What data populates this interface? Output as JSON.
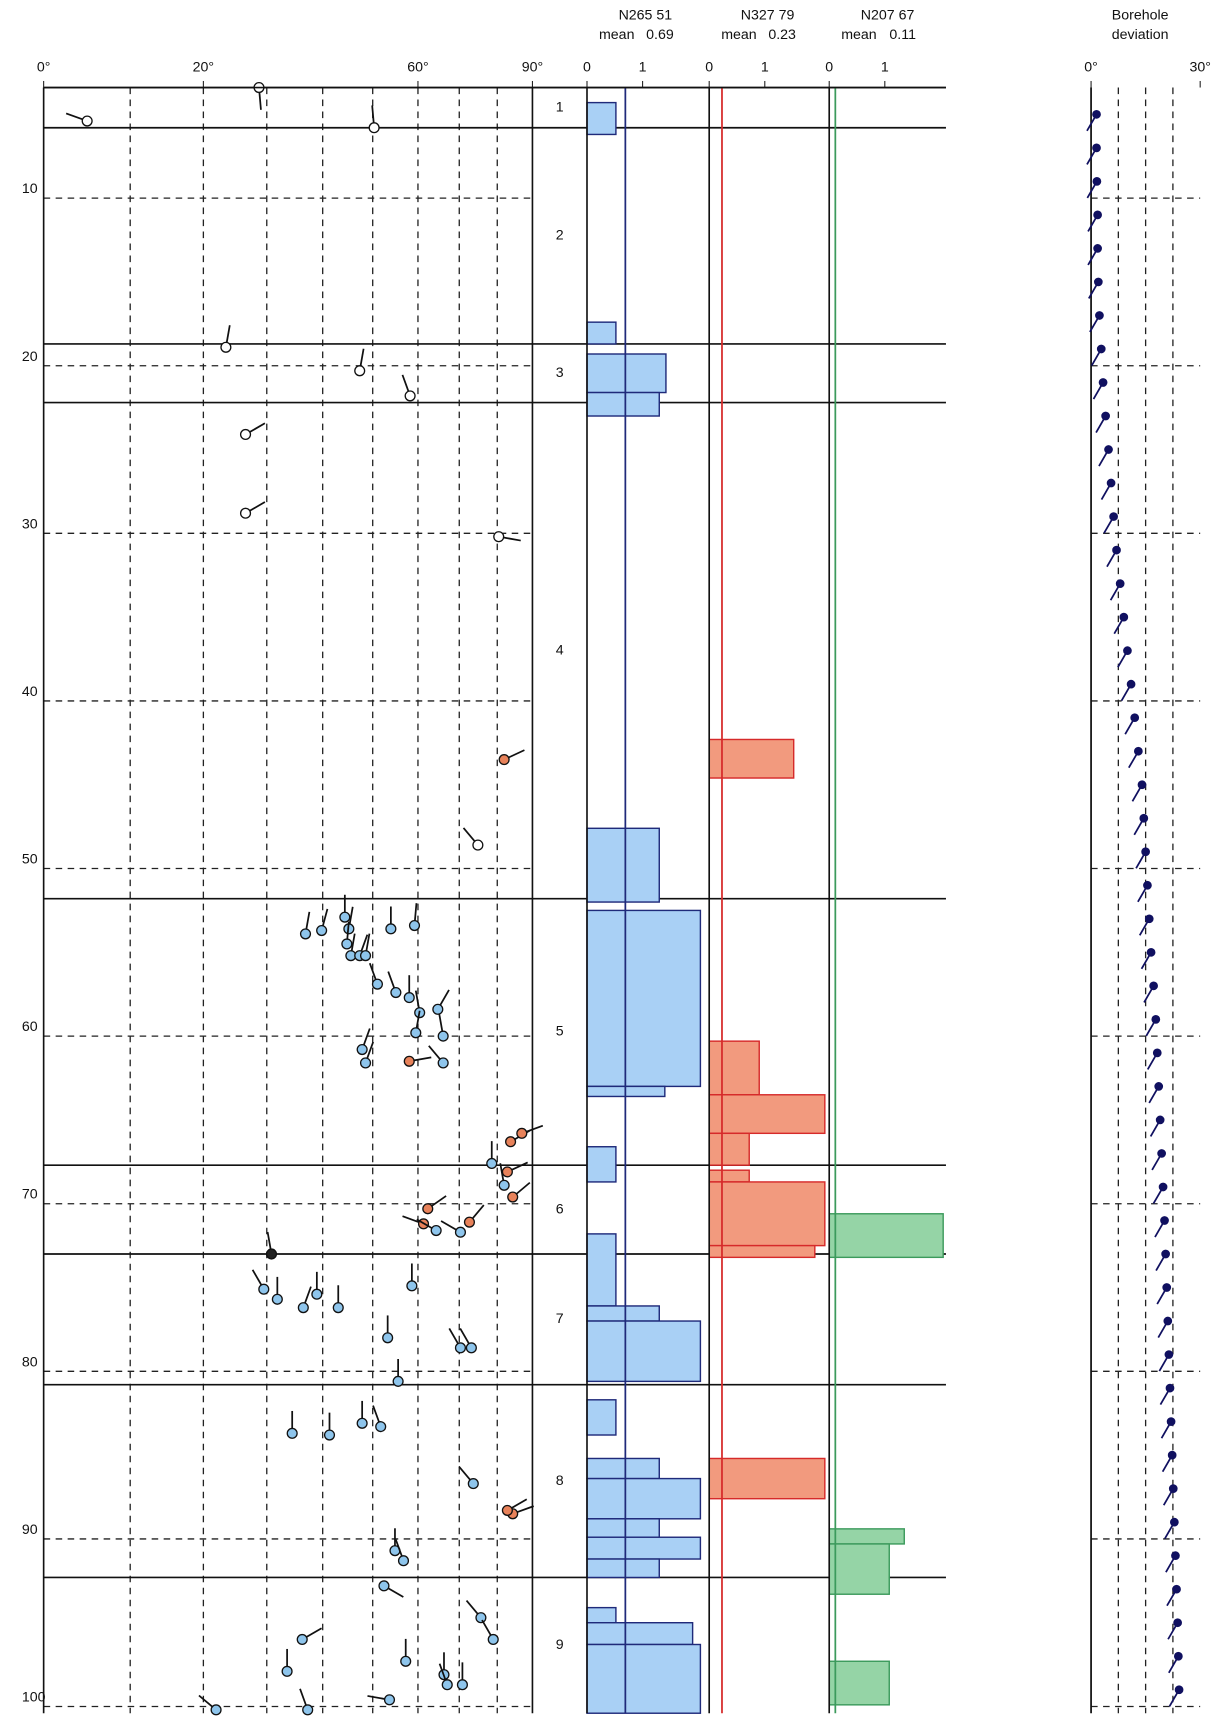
{
  "chart_data": [
    {
      "type": "tadpole",
      "xlim": [
        0,
        90
      ],
      "x_scale": "log",
      "ylim": [
        3.4,
        100.4
      ],
      "xticks": [
        {
          "value": 0,
          "label": "0°"
        },
        {
          "value": 20,
          "label": "20°"
        },
        {
          "value": 60,
          "label": "60°"
        },
        {
          "value": 90,
          "label": "90°"
        }
      ],
      "xgrid": [
        10,
        20,
        30,
        40,
        50,
        60,
        70,
        80
      ],
      "yticks": [
        10,
        20,
        30,
        40,
        50,
        60,
        70,
        80,
        90,
        100
      ],
      "zones": {
        "labels": [
          "1",
          "2",
          "3",
          "4",
          "5",
          "6",
          "7",
          "8",
          "9"
        ],
        "boundaries": [
          3.4,
          5.8,
          18.7,
          22.2,
          51.8,
          67.7,
          73.0,
          80.8,
          92.3,
          100.4
        ]
      },
      "series": [
        {
          "color": "#ffffff",
          "depth": [
            3.4,
            5.4,
            5.8,
            18.9,
            20.3,
            21.8,
            24.1,
            28.8,
            30.2,
            48.6
          ],
          "dip": [
            28.7,
            4.8,
            50.3,
            23.4,
            47.3,
            58.2,
            26.5,
            26.5,
            80.4,
            74.8
          ],
          "azimuth": [
            175,
            290,
            355,
            10,
            10,
            340,
            60,
            60,
            100,
            320
          ]
        },
        {
          "color": "#222222",
          "depth": [
            73.0
          ],
          "dip": [
            30.8
          ],
          "azimuth": [
            350
          ]
        },
        {
          "color": "#e8825a",
          "depth": [
            43.5,
            61.5,
            66.3,
            65.8,
            68.1,
            69.6,
            70.3,
            71.1,
            71.2,
            88.5,
            88.3
          ],
          "dip": [
            81.9,
            58.0,
            83.7,
            86.9,
            82.8,
            84.3,
            62.3,
            72.6,
            61.3,
            84.3,
            82.8
          ],
          "azimuth": [
            65,
            80,
            60,
            70,
            65,
            50,
            55,
            40,
            290,
            70,
            60
          ]
        },
        {
          "color": "#8ec5ec",
          "depth": [
            53.9,
            53.7,
            52.9,
            53.6,
            53.6,
            53.4,
            54.5,
            55.2,
            55.2,
            55.2,
            56.9,
            57.4,
            57.7,
            58.6,
            58.4,
            59.8,
            60.0,
            60.8,
            61.6,
            61.6,
            67.6,
            68.9,
            71.6,
            71.7,
            74.9,
            75.1,
            75.7,
            75.4,
            76.2,
            76.2,
            78.0,
            78.6,
            78.6,
            80.6,
            83.7,
            83.8,
            83.1,
            83.3,
            86.7,
            90.7,
            91.3,
            92.8,
            94.7,
            96.0,
            96.0,
            97.9,
            97.3,
            98.1,
            98.7,
            98.7,
            99.6,
            100.2,
            100.2
          ],
          "dip": [
            36.8,
            39.8,
            44.3,
            45.1,
            53.9,
            59.2,
            44.7,
            45.5,
            47.3,
            48.5,
            51.0,
            55.0,
            58.0,
            60.4,
            64.7,
            59.5,
            66.0,
            47.8,
            48.5,
            66.0,
            78.5,
            81.9,
            64.3,
            70.3,
            58.6,
            29.5,
            31.8,
            38.9,
            36.4,
            43.0,
            53.2,
            70.3,
            73.1,
            55.5,
            34.4,
            41.3,
            47.8,
            51.7,
            73.6,
            54.8,
            56.7,
            52.4,
            75.6,
            36.2,
            78.9,
            33.5,
            57.2,
            66.2,
            67.0,
            70.8,
            53.6,
            21.9,
            37.2
          ],
          "azimuth": [
            10,
            15,
            0,
            10,
            0,
            5,
            5,
            10,
            20,
            10,
            340,
            340,
            0,
            350,
            30,
            10,
            350,
            20,
            20,
            320,
            0,
            350,
            300,
            300,
            0,
            330,
            0,
            0,
            20,
            0,
            0,
            330,
            330,
            0,
            0,
            0,
            0,
            340,
            320,
            0,
            340,
            120,
            320,
            60,
            330,
            0,
            0,
            0,
            340,
            0,
            280,
            310,
            340
          ]
        }
      ]
    },
    {
      "type": "histogram",
      "title": "N265 51",
      "mean_label": "mean",
      "mean": 0.69,
      "xlim": [
        0,
        2.1
      ],
      "xticks": [
        0,
        1
      ],
      "ylim": [
        3.4,
        100.4
      ],
      "color": "#1f2a7a",
      "fill": "#a9d0f5",
      "depth_from": [
        4.3,
        17.4,
        19.3,
        21.6,
        47.6,
        52.5,
        63.0,
        66.6,
        71.8,
        76.1,
        77.0,
        81.7,
        85.2,
        86.4,
        88.8,
        89.9,
        91.2,
        94.1,
        95.0,
        96.3
      ],
      "depth_to": [
        6.2,
        18.7,
        21.6,
        23.0,
        52.0,
        63.0,
        63.6,
        68.7,
        76.1,
        77.0,
        80.6,
        83.8,
        86.4,
        88.8,
        89.9,
        91.2,
        92.3,
        95.0,
        96.3,
        100.4
      ],
      "values": [
        0.52,
        0.52,
        1.42,
        1.3,
        1.3,
        2.04,
        1.4,
        0.52,
        0.52,
        1.3,
        2.04,
        0.52,
        1.3,
        2.04,
        1.3,
        2.04,
        1.3,
        0.52,
        1.9,
        2.04
      ]
    },
    {
      "type": "histogram",
      "title": "N327 79",
      "mean_label": "mean",
      "mean": 0.23,
      "xlim": [
        0,
        2.1
      ],
      "xticks": [
        0,
        1
      ],
      "ylim": [
        3.4,
        100.4
      ],
      "color": "#d62a2a",
      "fill": "#f29a7e",
      "depth_from": [
        42.3,
        60.3,
        63.5,
        65.8,
        68.0,
        68.7,
        72.5,
        85.2
      ],
      "depth_to": [
        44.6,
        63.5,
        65.8,
        67.7,
        68.7,
        72.5,
        73.2,
        87.6
      ],
      "values": [
        1.52,
        0.9,
        2.08,
        0.72,
        0.72,
        2.08,
        1.9,
        2.08
      ]
    },
    {
      "type": "histogram",
      "title": "N207 67",
      "mean_label": "mean",
      "mean": 0.11,
      "xlim": [
        0,
        2.1
      ],
      "xticks": [
        0,
        1
      ],
      "ylim": [
        3.4,
        100.4
      ],
      "color": "#3c9a5c",
      "fill": "#95d4a6",
      "depth_from": [
        70.6,
        89.4,
        90.3,
        97.3
      ],
      "depth_to": [
        73.2,
        90.3,
        93.3,
        99.9
      ],
      "values": [
        2.05,
        1.35,
        1.08,
        1.08
      ]
    },
    {
      "type": "deviation",
      "title": [
        "Borehole",
        "deviation"
      ],
      "xlim": [
        0,
        30
      ],
      "ylim": [
        3.4,
        100.4
      ],
      "xticks": [
        {
          "value": 0,
          "label": "0°"
        },
        {
          "value": 30,
          "label": "30°"
        }
      ],
      "xgrid": [
        7.5,
        15,
        22.5
      ],
      "yticks": [
        10,
        20,
        30,
        40,
        50,
        60,
        70,
        80,
        90,
        100
      ],
      "color": "#101060",
      "azimuth": 210,
      "depth": [
        5,
        7,
        9,
        11,
        13,
        15,
        17,
        19,
        21,
        23,
        25,
        27,
        29,
        31,
        33,
        35,
        37,
        39,
        41,
        43,
        45,
        47,
        49,
        51,
        53,
        55,
        57,
        59,
        61,
        63,
        65,
        67,
        69,
        71,
        73,
        75,
        77,
        79,
        81,
        83,
        85,
        87,
        89,
        91,
        93,
        95,
        97,
        99
      ],
      "values": [
        1.5,
        1.5,
        1.6,
        1.8,
        1.8,
        2.0,
        2.3,
        2.8,
        3.3,
        4.0,
        4.8,
        5.5,
        6.2,
        7.0,
        8.0,
        9.0,
        10.0,
        11.0,
        12.0,
        13.0,
        14.0,
        14.5,
        15.0,
        15.5,
        16.0,
        16.5,
        17.2,
        17.8,
        18.2,
        18.6,
        19.0,
        19.4,
        19.8,
        20.2,
        20.5,
        20.8,
        21.1,
        21.4,
        21.7,
        22.0,
        22.3,
        22.6,
        22.9,
        23.2,
        23.5,
        23.8,
        24.0,
        24.2
      ]
    }
  ]
}
